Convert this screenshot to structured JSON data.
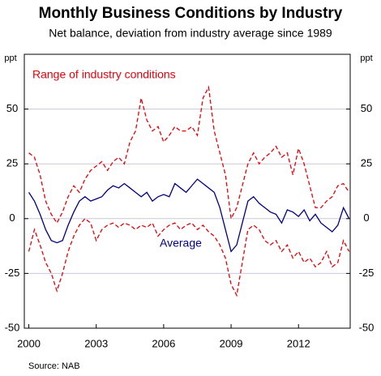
{
  "chart_data": {
    "type": "line",
    "title": "Monthly Business Conditions by Industry",
    "subtitle": "Net balance, deviation from industry average since 1989",
    "ylabel": "ppt",
    "y2label": "ppt",
    "source": "Source: NAB",
    "x": [
      2000,
      2000.25,
      2000.5,
      2000.75,
      2001,
      2001.25,
      2001.5,
      2001.75,
      2002,
      2002.25,
      2002.5,
      2002.75,
      2003,
      2003.25,
      2003.5,
      2003.75,
      2004,
      2004.25,
      2004.5,
      2004.75,
      2005,
      2005.25,
      2005.5,
      2005.75,
      2006,
      2006.25,
      2006.5,
      2006.75,
      2007,
      2007.25,
      2007.5,
      2007.75,
      2008,
      2008.25,
      2008.5,
      2008.75,
      2009,
      2009.25,
      2009.5,
      2009.75,
      2010,
      2010.25,
      2010.5,
      2010.75,
      2011,
      2011.25,
      2011.5,
      2011.75,
      2012,
      2012.25,
      2012.5,
      2012.75,
      2013,
      2013.25,
      2013.5,
      2013.75,
      2014,
      2014.25
    ],
    "series": [
      {
        "name": "Range of industry conditions",
        "color": "#e8000b",
        "dashed": true,
        "values": [
          30,
          28,
          20,
          8,
          2,
          -2,
          3,
          10,
          15,
          12,
          18,
          22,
          24,
          26,
          22,
          26,
          28,
          25,
          35,
          40,
          55,
          45,
          40,
          42,
          35,
          38,
          42,
          40,
          40,
          42,
          38,
          55,
          60,
          40,
          30,
          20,
          0,
          5,
          15,
          25,
          30,
          25,
          28,
          30,
          33,
          28,
          30,
          20,
          32,
          25,
          15,
          5,
          5,
          8,
          10,
          15,
          16,
          12
        ],
        "lower": [
          -15,
          -5,
          -12,
          -20,
          -25,
          -33,
          -25,
          -15,
          -8,
          -3,
          0,
          -2,
          -10,
          -5,
          -3,
          -2,
          -4,
          -2,
          -3,
          -5,
          -3,
          -4,
          -2,
          -8,
          -5,
          -3,
          -2,
          -5,
          -3,
          -2,
          -5,
          -3,
          -6,
          -8,
          -12,
          -18,
          -30,
          -35,
          -20,
          -5,
          -3,
          -5,
          -10,
          -12,
          -10,
          -15,
          -12,
          -18,
          -15,
          -20,
          -18,
          -22,
          -20,
          -15,
          -22,
          -20,
          -10,
          -15
        ]
      },
      {
        "name": "Average",
        "color": "#000080",
        "dashed": false,
        "values": [
          12,
          8,
          2,
          -5,
          -10,
          -11,
          -10,
          -3,
          3,
          8,
          10,
          8,
          9,
          10,
          13,
          15,
          14,
          16,
          14,
          12,
          10,
          12,
          8,
          10,
          11,
          10,
          16,
          14,
          12,
          15,
          18,
          16,
          14,
          12,
          5,
          -5,
          -15,
          -12,
          -2,
          8,
          10,
          7,
          5,
          3,
          2,
          -2,
          4,
          3,
          1,
          4,
          -1,
          2,
          -2,
          -4,
          -6,
          -3,
          5,
          0
        ]
      }
    ],
    "xlim": [
      1999.8,
      2014.3
    ],
    "xticks": [
      2000,
      2003,
      2006,
      2009,
      2012
    ],
    "ylim": [
      -50,
      75
    ],
    "yticks": [
      -50,
      -25,
      0,
      25,
      50
    ],
    "y2lim": [
      -50,
      75
    ],
    "y2ticks": [
      -50,
      -25,
      0,
      25,
      50
    ],
    "grid": true
  }
}
